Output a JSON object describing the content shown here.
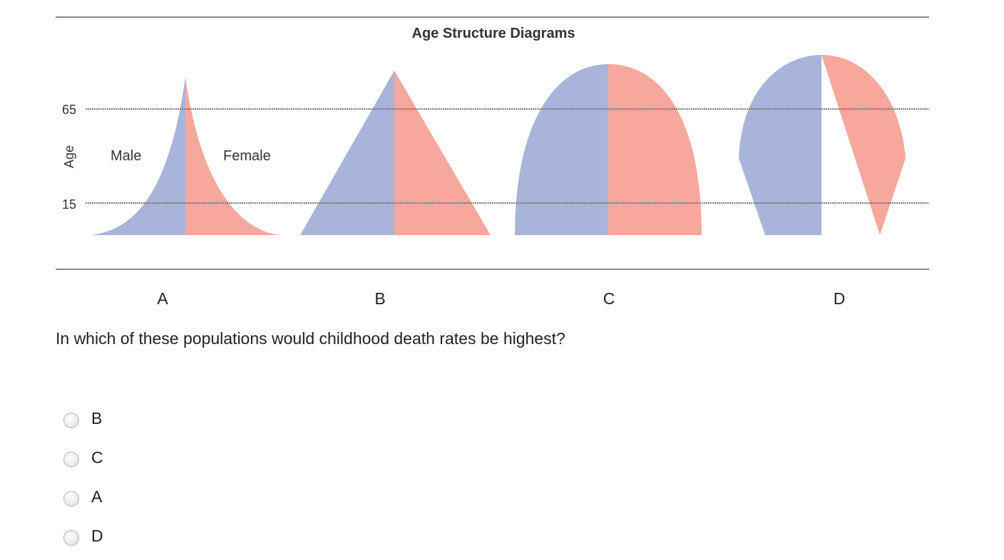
{
  "figure": {
    "title": "Age Structure Diagrams",
    "axis_label": "Age",
    "ticks": [
      "65",
      "15"
    ],
    "legend": {
      "male": "Male",
      "female": "Female"
    },
    "colors": {
      "male": "#a9b4da",
      "female": "#f6a89d",
      "rule": "#888888",
      "dotted": "#7a7a7a"
    }
  },
  "diagram_labels": [
    "A",
    "B",
    "C",
    "D"
  ],
  "question": "In which of these populations would childhood death rates be highest?",
  "options": [
    {
      "label": "B",
      "selected": false
    },
    {
      "label": "C",
      "selected": false
    },
    {
      "label": "A",
      "selected": false
    },
    {
      "label": "D",
      "selected": false
    }
  ]
}
